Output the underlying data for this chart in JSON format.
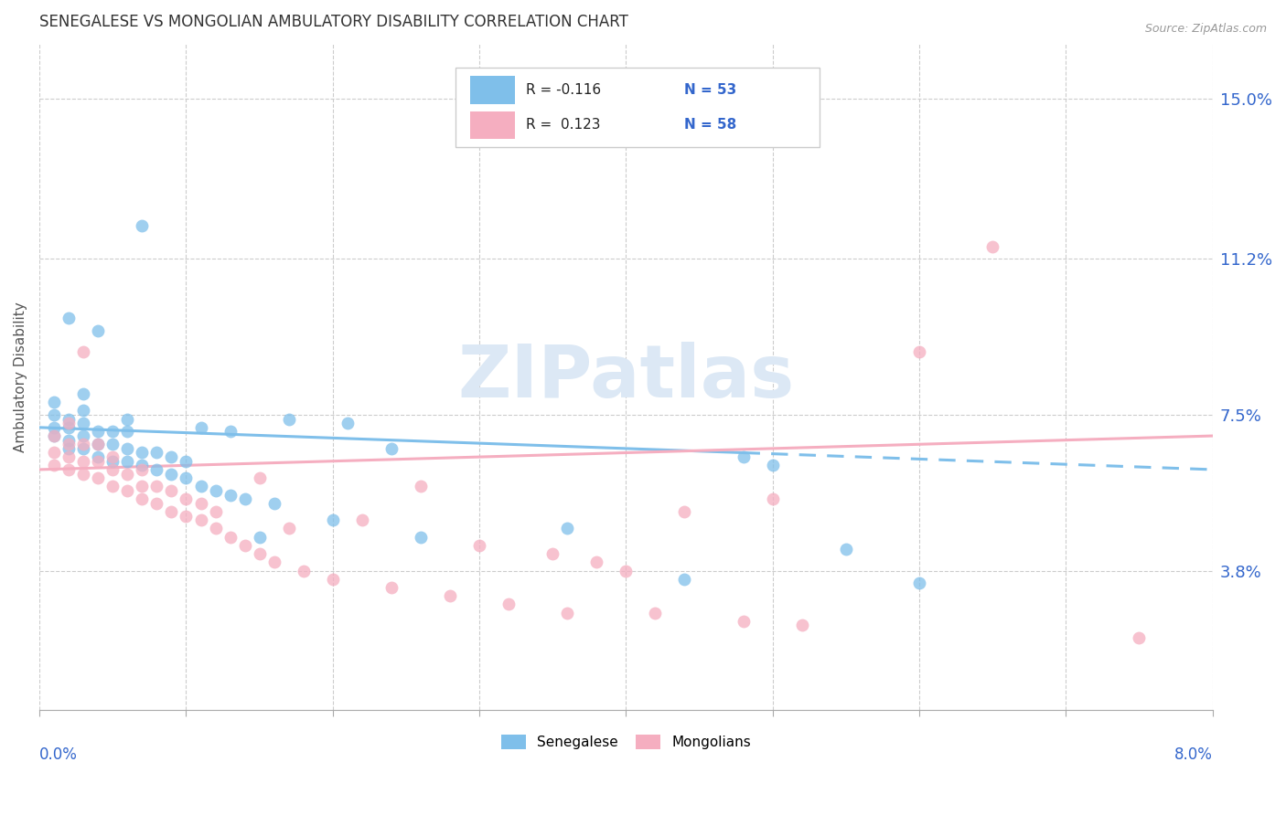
{
  "title": "SENEGALESE VS MONGOLIAN AMBULATORY DISABILITY CORRELATION CHART",
  "source": "Source: ZipAtlas.com",
  "ylabel": "Ambulatory Disability",
  "ytick_labels": [
    "3.8%",
    "7.5%",
    "11.2%",
    "15.0%"
  ],
  "ytick_values": [
    0.038,
    0.075,
    0.112,
    0.15
  ],
  "xlim": [
    0.0,
    0.08
  ],
  "ylim": [
    0.005,
    0.163
  ],
  "color_senegalese": "#7fbfea",
  "color_mongolian": "#f5aec0",
  "color_blue_text": "#3366cc",
  "watermark_color": "#dce8f5",
  "trend_blue_start_y": 0.072,
  "trend_blue_end_y": 0.062,
  "trend_pink_start_y": 0.062,
  "trend_pink_end_y": 0.07,
  "trend_solid_end_x": 0.048,
  "senegalese_x": [
    0.001,
    0.001,
    0.001,
    0.001,
    0.002,
    0.002,
    0.002,
    0.002,
    0.002,
    0.003,
    0.003,
    0.003,
    0.003,
    0.003,
    0.004,
    0.004,
    0.004,
    0.004,
    0.005,
    0.005,
    0.005,
    0.006,
    0.006,
    0.006,
    0.006,
    0.007,
    0.007,
    0.007,
    0.008,
    0.008,
    0.009,
    0.009,
    0.01,
    0.01,
    0.011,
    0.011,
    0.012,
    0.013,
    0.013,
    0.014,
    0.015,
    0.016,
    0.017,
    0.02,
    0.021,
    0.024,
    0.026,
    0.036,
    0.044,
    0.048,
    0.05,
    0.055,
    0.06
  ],
  "senegalese_y": [
    0.07,
    0.072,
    0.075,
    0.078,
    0.067,
    0.069,
    0.072,
    0.074,
    0.098,
    0.067,
    0.07,
    0.073,
    0.076,
    0.08,
    0.065,
    0.068,
    0.071,
    0.095,
    0.064,
    0.068,
    0.071,
    0.064,
    0.067,
    0.071,
    0.074,
    0.063,
    0.066,
    0.12,
    0.062,
    0.066,
    0.061,
    0.065,
    0.06,
    0.064,
    0.058,
    0.072,
    0.057,
    0.056,
    0.071,
    0.055,
    0.046,
    0.054,
    0.074,
    0.05,
    0.073,
    0.067,
    0.046,
    0.048,
    0.036,
    0.065,
    0.063,
    0.043,
    0.035
  ],
  "mongolian_x": [
    0.001,
    0.001,
    0.001,
    0.002,
    0.002,
    0.002,
    0.002,
    0.003,
    0.003,
    0.003,
    0.003,
    0.004,
    0.004,
    0.004,
    0.005,
    0.005,
    0.005,
    0.006,
    0.006,
    0.007,
    0.007,
    0.007,
    0.008,
    0.008,
    0.009,
    0.009,
    0.01,
    0.01,
    0.011,
    0.011,
    0.012,
    0.012,
    0.013,
    0.014,
    0.015,
    0.015,
    0.016,
    0.017,
    0.018,
    0.02,
    0.022,
    0.024,
    0.026,
    0.028,
    0.03,
    0.032,
    0.035,
    0.036,
    0.038,
    0.04,
    0.042,
    0.044,
    0.048,
    0.05,
    0.052,
    0.06,
    0.065,
    0.075
  ],
  "mongolian_y": [
    0.063,
    0.066,
    0.07,
    0.062,
    0.065,
    0.068,
    0.073,
    0.061,
    0.064,
    0.068,
    0.09,
    0.06,
    0.064,
    0.068,
    0.058,
    0.062,
    0.065,
    0.057,
    0.061,
    0.055,
    0.058,
    0.062,
    0.054,
    0.058,
    0.052,
    0.057,
    0.051,
    0.055,
    0.05,
    0.054,
    0.048,
    0.052,
    0.046,
    0.044,
    0.042,
    0.06,
    0.04,
    0.048,
    0.038,
    0.036,
    0.05,
    0.034,
    0.058,
    0.032,
    0.044,
    0.03,
    0.042,
    0.028,
    0.04,
    0.038,
    0.028,
    0.052,
    0.026,
    0.055,
    0.025,
    0.09,
    0.115,
    0.022
  ]
}
